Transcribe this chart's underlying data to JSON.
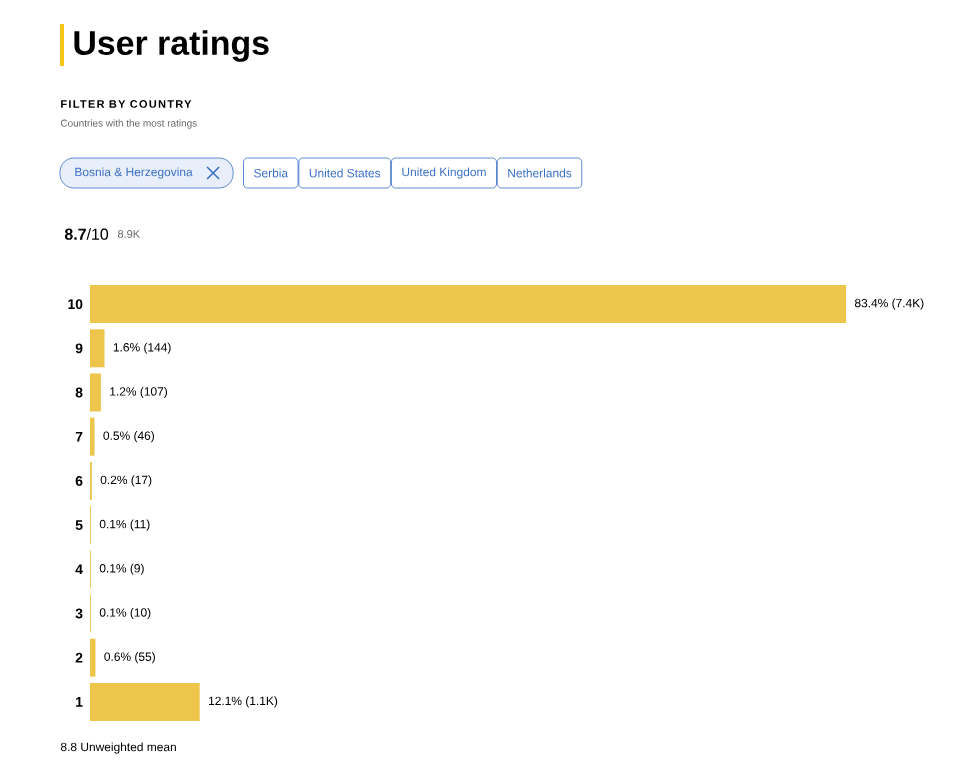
{
  "chart_data": {
    "type": "bar",
    "orientation": "horizontal",
    "title": "User ratings",
    "subtitle": "FILTER BY COUNTRY",
    "annotations": [
      "Countries with the most ratings",
      "Bosnia & Herzegovina",
      "Serbia",
      "United States",
      "United Kingdom",
      "Netherlands",
      "**8.7**/10",
      "8.9K",
      "8.8 Unweighted mean"
    ],
    "categories": [
      "10",
      "9",
      "8",
      "7",
      "6",
      "5",
      "4",
      "3",
      "2",
      "1"
    ],
    "values": [
      83.4,
      1.6,
      1.2,
      0.5,
      0.2,
      0.1,
      0.1,
      0.1,
      0.6,
      12.1
    ],
    "value_labels": [
      "83.4% (7.4K)",
      "1.6% (144)",
      "1.2% (107)",
      "0.5% (46)",
      "0.2% (17)",
      "0.1% (11)",
      "0.1% (9)",
      "0.1% (10)",
      "0.6% (55)",
      "12.1% (1.1K)"
    ],
    "color": "#ecc54a"
  }
}
